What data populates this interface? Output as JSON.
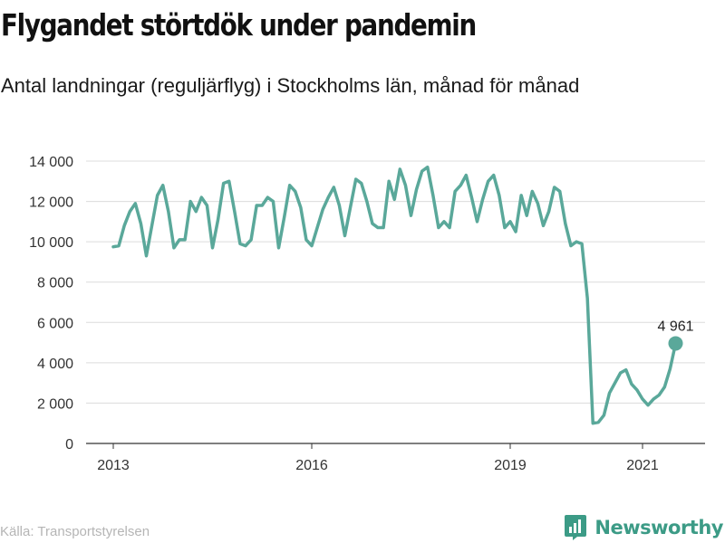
{
  "title": "Flygandet störtdök under pandemin",
  "subtitle": "Antal landningar (reguljärflyg) i Stockholms län, månad för månad",
  "source": "Källa: Transportstyrelsen",
  "brand": {
    "name": "Newsworthy",
    "icon": "newsworthy-logo-icon",
    "color": "#3c9b86"
  },
  "chart_data": {
    "type": "line",
    "title": "Flygandet störtdök under pandemin",
    "subtitle": "Antal landningar (reguljärflyg) i Stockholms län, månad för månad",
    "xlabel": "",
    "ylabel": "",
    "ylim": [
      0,
      14000
    ],
    "yticks": [
      0,
      2000,
      4000,
      6000,
      8000,
      10000,
      12000,
      14000
    ],
    "ytick_labels": [
      "0",
      "2 000",
      "4 000",
      "6 000",
      "8 000",
      "10 000",
      "12 000",
      "14 000"
    ],
    "xticks": [
      2013,
      2016,
      2019,
      2021
    ],
    "xtick_labels": [
      "2013",
      "2016",
      "2019",
      "2021"
    ],
    "grid": true,
    "line_color": "#5aa89a",
    "series": [
      {
        "start": "2013-01",
        "frequency": "monthly",
        "values": [
          9750,
          9800,
          10800,
          11500,
          11900,
          10900,
          9300,
          10800,
          12300,
          12800,
          11500,
          9700,
          10100,
          10100,
          12000,
          11500,
          12200,
          11800,
          9700,
          11100,
          12900,
          13000,
          11500,
          9900,
          9800,
          10100,
          11800,
          11800,
          12200,
          12000,
          9700,
          11200,
          12800,
          12500,
          11700,
          10100,
          9800,
          10700,
          11600,
          12200,
          12700,
          11800,
          10300,
          11700,
          13100,
          12900,
          12000,
          10900,
          10700,
          10700,
          13000,
          12100,
          13600,
          12800,
          11300,
          12600,
          13500,
          13700,
          12300,
          10700,
          11000,
          10700,
          12500,
          12800,
          13300,
          12200,
          11000,
          12100,
          13000,
          13300,
          12300,
          10700,
          11000,
          10500,
          12300,
          11300,
          12500,
          11900,
          10800,
          11500,
          12700,
          12500,
          10900,
          9800,
          10000,
          9900,
          7200,
          1000,
          1050,
          1400,
          2500,
          3000,
          3500,
          3650,
          2950,
          2650,
          2200,
          1900,
          2200,
          2400,
          2800,
          3700,
          4961
        ]
      }
    ],
    "annotation": {
      "label": "4 961",
      "value": 4961,
      "target": "last-point"
    }
  }
}
